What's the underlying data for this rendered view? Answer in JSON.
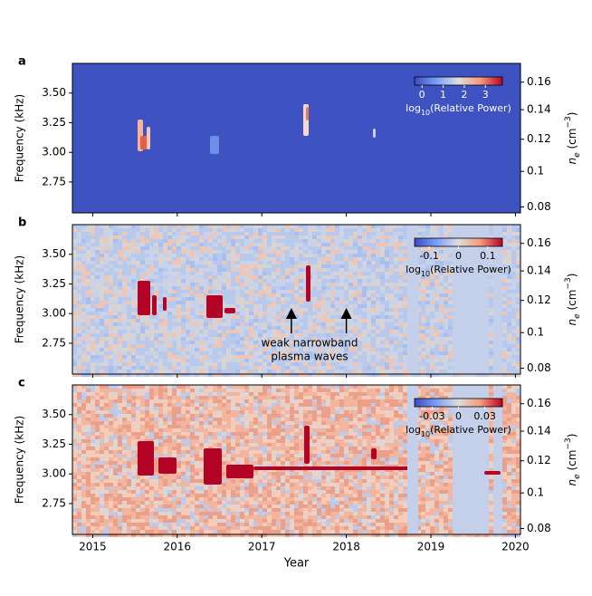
{
  "chart_data": [
    {
      "type": "heatmap",
      "panel_label": "a",
      "ylabel": "Frequency (kHz)",
      "y2label": {
        "base": "n",
        "sub": "e",
        "unit": " (cm",
        "sup": "−3",
        "close": ")"
      },
      "xlim": [
        2014.76,
        2020.06
      ],
      "xticks": [
        2015,
        2016,
        2017,
        2018,
        2019,
        2020
      ],
      "ylim": [
        2.49,
        3.75
      ],
      "yticks": [
        {
          "value": 2.75,
          "label": "2.75"
        },
        {
          "value": 3.0,
          "label": "3.00"
        },
        {
          "value": 3.25,
          "label": "3.25"
        },
        {
          "value": 3.5,
          "label": "3.50"
        }
      ],
      "y2ticks": [
        0.08,
        0.1,
        0.12,
        0.14,
        0.16
      ],
      "colorbar": {
        "lim": [
          -0.35,
          3.8
        ],
        "ticks": [
          0,
          1,
          2,
          3
        ],
        "label": {
          "base": "log",
          "sub": "10",
          "rest": "(Relative Power)"
        }
      }
    },
    {
      "type": "heatmap",
      "panel_label": "b",
      "ylabel": "Frequency (kHz)",
      "y2label": {
        "base": "n",
        "sub": "e",
        "unit": " (cm",
        "sup": "−3",
        "close": ")"
      },
      "xlim": [
        2014.76,
        2020.06
      ],
      "xticks": [
        2015,
        2016,
        2017,
        2018,
        2019,
        2020
      ],
      "ylim": [
        2.49,
        3.75
      ],
      "yticks": [
        {
          "value": 2.75,
          "label": "2.75"
        },
        {
          "value": 3.0,
          "label": "3.00"
        },
        {
          "value": 3.25,
          "label": "3.25"
        },
        {
          "value": 3.5,
          "label": "3.50"
        }
      ],
      "y2ticks": [
        0.08,
        0.1,
        0.12,
        0.14,
        0.16
      ],
      "colorbar": {
        "lim": [
          -0.15,
          0.15
        ],
        "ticks": [
          -0.1,
          0,
          0.1
        ],
        "label": {
          "base": "log",
          "sub": "10",
          "rest": "(Relative Power)"
        }
      },
      "annotation": {
        "lines": [
          "weak narrowband",
          "plasma waves"
        ],
        "arrows_x": [
          2017.35,
          2018.0
        ]
      }
    },
    {
      "type": "heatmap",
      "panel_label": "c",
      "ylabel": "Frequency (kHz)",
      "y2label": {
        "base": "n",
        "sub": "e",
        "unit": " (cm",
        "sup": "−3",
        "close": ")"
      },
      "xlabel": "Year",
      "show_xtick_labels": true,
      "xlim": [
        2014.76,
        2020.06
      ],
      "xticks": [
        2015,
        2016,
        2017,
        2018,
        2019,
        2020
      ],
      "ylim": [
        2.49,
        3.75
      ],
      "yticks": [
        {
          "value": 2.75,
          "label": "2.75"
        },
        {
          "value": 3.0,
          "label": "3.00"
        },
        {
          "value": 3.25,
          "label": "3.25"
        },
        {
          "value": 3.5,
          "label": "3.50"
        }
      ],
      "y2ticks": [
        0.08,
        0.1,
        0.12,
        0.14,
        0.16
      ],
      "colorbar": {
        "lim": [
          -0.05,
          0.05
        ],
        "ticks": [
          -0.03,
          0,
          0.03
        ],
        "label": {
          "base": "log",
          "sub": "10",
          "rest": "(Relative Power)"
        }
      }
    }
  ]
}
